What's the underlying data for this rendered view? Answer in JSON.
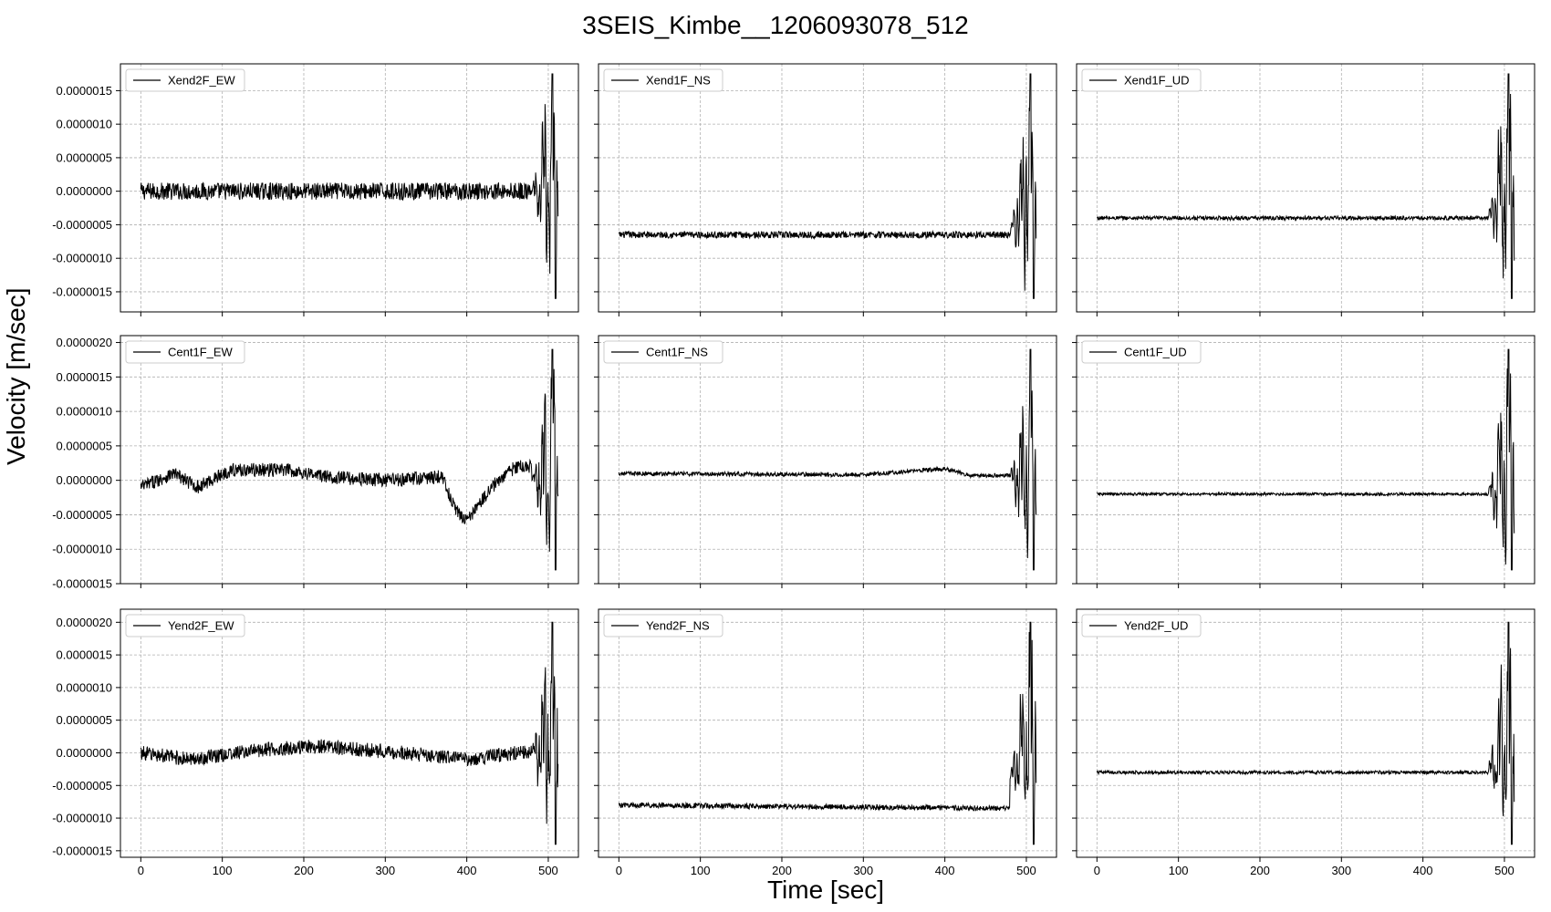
{
  "figure": {
    "title": "3SEIS_Kimbe__1206093078_512",
    "xlabel": "Time [sec]",
    "ylabel": "Velocity [m/sec]"
  },
  "chart_data": [
    {
      "type": "line",
      "legend": "Xend2F_EW",
      "series": [
        {
          "name": "Xend2F_EW"
        }
      ],
      "xlim": [
        -25,
        537
      ],
      "xticks": [
        0,
        100,
        200,
        300,
        400,
        500
      ],
      "ylim": [
        -1.8e-06,
        1.9e-06
      ],
      "yticks": [
        "-0.0000015",
        "-0.0000010",
        "-0.0000005",
        "0.0000000",
        "0.0000005",
        "0.0000010",
        "0.0000015"
      ],
      "base": 0.0,
      "noise": 1.3e-07,
      "drift": [],
      "event": {
        "start": 480,
        "peak": 1.75e-06,
        "trough": -1.6e-06
      },
      "grid": true,
      "legend_loc": "upper left"
    },
    {
      "type": "line",
      "legend": "Xend1F_NS",
      "series": [
        {
          "name": "Xend1F_NS"
        }
      ],
      "xlim": [
        -25,
        537
      ],
      "xticks": [
        0,
        100,
        200,
        300,
        400,
        500
      ],
      "ylim": [
        -1.8e-06,
        1.9e-06
      ],
      "yticks": [],
      "base": -6.5e-07,
      "noise": 5e-08,
      "drift": [],
      "event": {
        "start": 480,
        "peak": 1.75e-06,
        "trough": -1.6e-06
      },
      "grid": true,
      "legend_loc": "upper left"
    },
    {
      "type": "line",
      "legend": "Xend1F_UD",
      "series": [
        {
          "name": "Xend1F_UD"
        }
      ],
      "xlim": [
        -25,
        537
      ],
      "xticks": [
        0,
        100,
        200,
        300,
        400,
        500
      ],
      "ylim": [
        -1.8e-06,
        1.9e-06
      ],
      "yticks": [],
      "base": -4e-07,
      "noise": 3e-08,
      "drift": [],
      "event": {
        "start": 480,
        "peak": 1.75e-06,
        "trough": -1.6e-06
      },
      "grid": true,
      "legend_loc": "upper left"
    },
    {
      "type": "line",
      "legend": "Cent1F_EW",
      "series": [
        {
          "name": "Cent1F_EW"
        }
      ],
      "xlim": [
        -25,
        537
      ],
      "xticks": [
        0,
        100,
        200,
        300,
        400,
        500
      ],
      "ylim": [
        -1.5e-06,
        2.1e-06
      ],
      "yticks": [
        "-0.0000015",
        "-0.0000010",
        "-0.0000005",
        "0.0000000",
        "0.0000005",
        "0.0000010",
        "0.0000015",
        "0.0000020"
      ],
      "base": 0.0,
      "noise": 1e-07,
      "drift": [
        [
          0,
          -1e-07
        ],
        [
          40,
          1e-07
        ],
        [
          70,
          -1e-07
        ],
        [
          110,
          1.5e-07
        ],
        [
          180,
          1.5e-07
        ],
        [
          230,
          5e-08
        ],
        [
          300,
          0.0
        ],
        [
          370,
          5e-08
        ],
        [
          385,
          -4e-07
        ],
        [
          400,
          -6e-07
        ],
        [
          430,
          -1e-07
        ],
        [
          460,
          2e-07
        ],
        [
          480,
          2e-07
        ]
      ],
      "event": {
        "start": 480,
        "peak": 1.9e-06,
        "trough": -1.3e-06
      },
      "grid": true,
      "legend_loc": "upper left"
    },
    {
      "type": "line",
      "legend": "Cent1F_NS",
      "series": [
        {
          "name": "Cent1F_NS"
        }
      ],
      "xlim": [
        -25,
        537
      ],
      "xticks": [
        0,
        100,
        200,
        300,
        400,
        500
      ],
      "ylim": [
        -1.5e-06,
        2.1e-06
      ],
      "yticks": [],
      "base": 5e-08,
      "noise": 3e-08,
      "drift": [
        [
          0,
          5e-08
        ],
        [
          300,
          3e-08
        ],
        [
          400,
          1.2e-07
        ],
        [
          430,
          2e-08
        ],
        [
          480,
          2e-08
        ]
      ],
      "event": {
        "start": 480,
        "peak": 1.9e-06,
        "trough": -1.3e-06
      },
      "grid": true,
      "legend_loc": "upper left"
    },
    {
      "type": "line",
      "legend": "Cent1F_UD",
      "series": [
        {
          "name": "Cent1F_UD"
        }
      ],
      "xlim": [
        -25,
        537
      ],
      "xticks": [
        0,
        100,
        200,
        300,
        400,
        500
      ],
      "ylim": [
        -1.5e-06,
        2.1e-06
      ],
      "yticks": [],
      "base": -2e-07,
      "noise": 2e-08,
      "drift": [],
      "event": {
        "start": 480,
        "peak": 1.9e-06,
        "trough": -1.3e-06
      },
      "grid": true,
      "legend_loc": "upper left"
    },
    {
      "type": "line",
      "legend": "Yend2F_EW",
      "series": [
        {
          "name": "Yend2F_EW"
        }
      ],
      "xlim": [
        -25,
        537
      ],
      "xticks": [
        0,
        100,
        200,
        300,
        400,
        500
      ],
      "ylim": [
        -1.6e-06,
        2.2e-06
      ],
      "yticks": [
        "-0.0000015",
        "-0.0000010",
        "-0.0000005",
        "0.0000000",
        "0.0000005",
        "0.0000010",
        "0.0000015",
        "0.0000020"
      ],
      "base": 0.0,
      "noise": 1.1e-07,
      "drift": [
        [
          0,
          0.0
        ],
        [
          60,
          -1e-07
        ],
        [
          150,
          5e-08
        ],
        [
          220,
          1e-07
        ],
        [
          320,
          0.0
        ],
        [
          400,
          -1e-07
        ],
        [
          480,
          3e-08
        ]
      ],
      "event": {
        "start": 480,
        "peak": 2e-06,
        "trough": -1.4e-06
      },
      "grid": true,
      "legend_loc": "upper left"
    },
    {
      "type": "line",
      "legend": "Yend2F_NS",
      "series": [
        {
          "name": "Yend2F_NS"
        }
      ],
      "xlim": [
        -25,
        537
      ],
      "xticks": [
        0,
        100,
        200,
        300,
        400,
        500
      ],
      "ylim": [
        -1.6e-06,
        2.2e-06
      ],
      "yticks": [],
      "base": -4e-07,
      "noise": 4e-08,
      "drift": [
        [
          0,
          -4e-07
        ],
        [
          480,
          -4.5e-07
        ]
      ],
      "event": {
        "start": 480,
        "peak": 2e-06,
        "trough": -1.4e-06
      },
      "grid": true,
      "legend_loc": "upper left"
    },
    {
      "type": "line",
      "legend": "Yend2F_UD",
      "series": [
        {
          "name": "Yend2F_UD"
        }
      ],
      "xlim": [
        -25,
        537
      ],
      "xticks": [
        0,
        100,
        200,
        300,
        400,
        500
      ],
      "ylim": [
        -1.6e-06,
        2.2e-06
      ],
      "yticks": [],
      "base": -3e-07,
      "noise": 2.5e-08,
      "drift": [],
      "event": {
        "start": 480,
        "peak": 2e-06,
        "trough": -1.4e-06
      },
      "grid": true,
      "legend_loc": "upper left"
    }
  ]
}
